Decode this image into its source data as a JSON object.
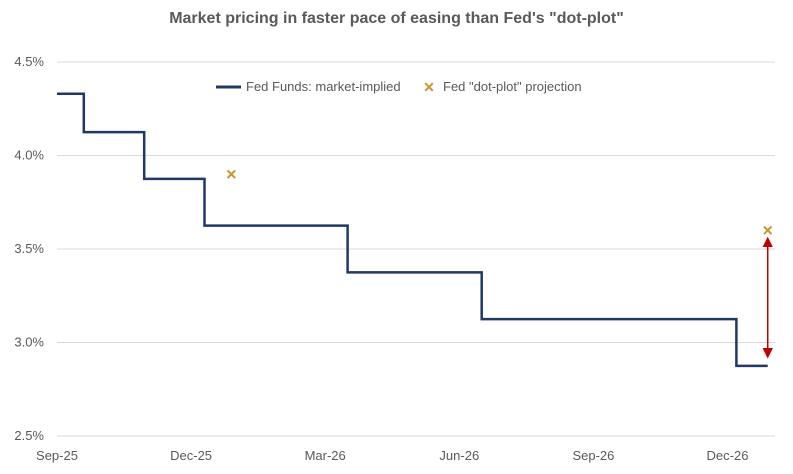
{
  "chart_data": {
    "type": "line",
    "title": "Market pricing in faster pace of easing than Fed's \"dot-plot\"",
    "xlabel": "",
    "ylabel": "",
    "ylim": [
      2.5,
      4.5
    ],
    "y_ticks": [
      2.5,
      3.0,
      3.5,
      4.0,
      4.5
    ],
    "y_tick_labels": [
      "2.5%",
      "3.0%",
      "3.5%",
      "4.0%",
      "4.5%"
    ],
    "x_range_months": [
      0,
      15.9
    ],
    "x_ticks": [
      {
        "month": 0,
        "label": "Sep-25"
      },
      {
        "month": 3,
        "label": "Dec-25"
      },
      {
        "month": 6,
        "label": "Mar-26"
      },
      {
        "month": 9,
        "label": "Jun-26"
      },
      {
        "month": 12,
        "label": "Sep-26"
      },
      {
        "month": 15,
        "label": "Dec-26"
      }
    ],
    "series": [
      {
        "name": "Fed Funds: market-implied",
        "kind": "step-line",
        "color": "#1f3864",
        "points": [
          {
            "month": 0.0,
            "value": 4.33
          },
          {
            "month": 0.6,
            "value": 4.33
          },
          {
            "month": 0.6,
            "value": 4.125
          },
          {
            "month": 1.95,
            "value": 4.125
          },
          {
            "month": 1.95,
            "value": 3.875
          },
          {
            "month": 3.3,
            "value": 3.875
          },
          {
            "month": 3.3,
            "value": 3.625
          },
          {
            "month": 6.5,
            "value": 3.625
          },
          {
            "month": 6.5,
            "value": 3.375
          },
          {
            "month": 9.5,
            "value": 3.375
          },
          {
            "month": 9.5,
            "value": 3.125
          },
          {
            "month": 15.2,
            "value": 3.125
          },
          {
            "month": 15.2,
            "value": 2.875
          },
          {
            "month": 15.9,
            "value": 2.875
          }
        ]
      },
      {
        "name": "Fed \"dot-plot\" projection",
        "kind": "marker-x",
        "color": "#c9962b",
        "points": [
          {
            "month": 3.9,
            "value": 3.9
          },
          {
            "month": 15.9,
            "value": 3.6
          }
        ]
      }
    ],
    "annotations": [
      {
        "type": "double-arrow",
        "color": "#c00000",
        "month": 15.9,
        "from": 3.56,
        "to": 2.92
      }
    ],
    "legend": {
      "position": "top-center"
    },
    "grid": true
  }
}
